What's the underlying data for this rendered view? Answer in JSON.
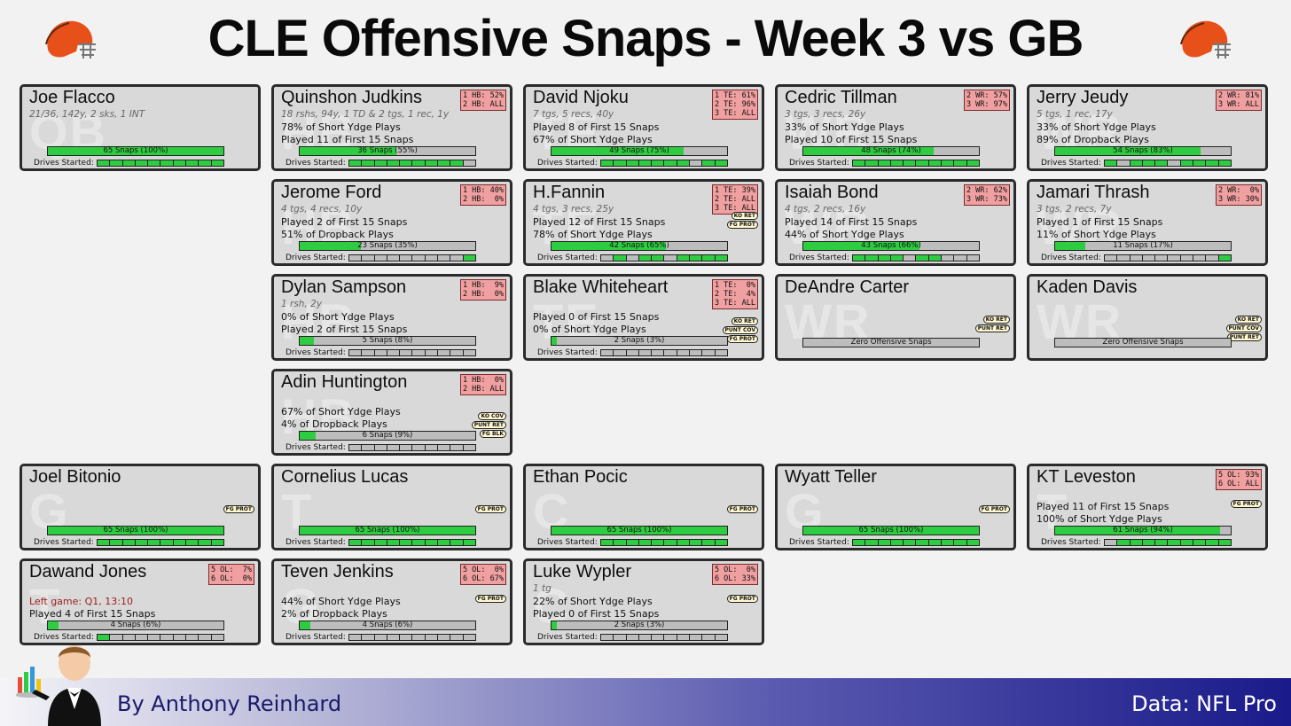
{
  "title": "CLE Offensive Snaps - Week 3 vs GB",
  "footer": {
    "byline": "By Anthony Reinhard",
    "source": "Data: NFL Pro"
  },
  "labels": {
    "drives": "Drives Started:"
  },
  "colors": {
    "fill": "#2ecc40",
    "bar_empty": "#bdbdbd",
    "badge": "#f0a0a0",
    "card": "#d9d9d9",
    "helmet": "#e8501a"
  },
  "players": [
    {
      "name": "Joe Flacco",
      "pos": "QB",
      "sub": "21/36, 142y, 2 sks, 1 INT",
      "l1": "",
      "l2": "",
      "snaps": "65 Snaps (100%)",
      "pct": 1.0,
      "drives": [
        1,
        1,
        1,
        1,
        1,
        1,
        1,
        1,
        1,
        1
      ],
      "badge": "",
      "roles": []
    },
    {
      "name": "Quinshon Judkins",
      "pos": "HB",
      "sub": "18 rshs, 94y, 1 TD & 2 tgs, 1 rec, 1y",
      "l1": "78% of Short Ydge Plays",
      "l2": "Played 11 of First 15 Snaps",
      "snaps": "36 Snaps (55%)",
      "pct": 0.55,
      "drives": [
        1,
        1,
        1,
        1,
        1,
        1,
        1,
        1,
        1,
        0
      ],
      "badge": "1 HB: 52%\n2 HB: ALL",
      "roles": []
    },
    {
      "name": "David Njoku",
      "pos": "TE",
      "sub": "7 tgs, 5 recs, 40y",
      "l1": "Played 8 of First 15 Snaps",
      "l2": "67% of Short Ydge Plays",
      "snaps": "49 Snaps (75%)",
      "pct": 0.75,
      "drives": [
        1,
        1,
        1,
        1,
        1,
        1,
        1,
        0,
        1,
        1
      ],
      "badge": "1 TE: 61%\n2 TE: 96%\n3 TE: ALL",
      "roles": []
    },
    {
      "name": "Cedric Tillman",
      "pos": "WR",
      "sub": "3 tgs, 3 recs, 26y",
      "l1": "33% of Short Ydge Plays",
      "l2": "Played 10 of First 15 Snaps",
      "snaps": "48 Snaps (74%)",
      "pct": 0.74,
      "drives": [
        1,
        1,
        1,
        1,
        1,
        1,
        1,
        1,
        1,
        1
      ],
      "badge": "2 WR: 57%\n3 WR: 97%",
      "roles": []
    },
    {
      "name": "Jerry Jeudy",
      "pos": "WR",
      "sub": "5 tgs, 1 rec, 17y",
      "l1": "33% of Short Ydge Plays",
      "l2": "89% of Dropback Plays",
      "snaps": "54 Snaps (83%)",
      "pct": 0.83,
      "drives": [
        1,
        0,
        1,
        1,
        1,
        0,
        1,
        1,
        1,
        1
      ],
      "badge": "2 WR: 81%\n3 WR: ALL",
      "roles": []
    },
    {
      "name": "Jerome Ford",
      "pos": "HB",
      "sub": "4 tgs, 4 recs, 10y",
      "l1": "Played 2 of First 15 Snaps",
      "l2": "51% of Dropback Plays",
      "snaps": "23 Snaps (35%)",
      "pct": 0.35,
      "drives": [
        0,
        0,
        0,
        0,
        0,
        0,
        0,
        0,
        0,
        1
      ],
      "badge": "1 HB: 40%\n2 HB:  0%",
      "roles": []
    },
    {
      "name": "H.Fannin",
      "pos": "TE",
      "sub": "4 tgs, 3 recs, 25y",
      "l1": "Played 12 of First 15 Snaps",
      "l2": "78% of Short Ydge Plays",
      "snaps": "42 Snaps (65%)",
      "pct": 0.65,
      "drives": [
        0,
        1,
        0,
        1,
        1,
        0,
        1,
        1,
        1,
        1
      ],
      "badge": "1 TE: 39%\n2 TE: ALL\n3 TE: ALL",
      "roles": [
        "KO RET",
        "FG PROT"
      ]
    },
    {
      "name": "Isaiah Bond",
      "pos": "WR",
      "sub": "4 tgs, 2 recs, 16y",
      "l1": "Played 14 of First 15 Snaps",
      "l2": "44% of Short Ydge Plays",
      "snaps": "43 Snaps (66%)",
      "pct": 0.66,
      "drives": [
        1,
        1,
        1,
        1,
        0,
        1,
        1,
        0,
        0,
        0
      ],
      "badge": "2 WR: 62%\n3 WR: 73%",
      "roles": []
    },
    {
      "name": "Jamari Thrash",
      "pos": "WR",
      "sub": "3 tgs, 2 recs, 7y",
      "l1": "Played 1 of First 15 Snaps",
      "l2": "11% of Short Ydge Plays",
      "snaps": "11 Snaps (17%)",
      "pct": 0.17,
      "drives": [
        0,
        0,
        0,
        0,
        0,
        0,
        0,
        0,
        0,
        1
      ],
      "badge": "2 WR:  0%\n3 WR: 30%",
      "roles": []
    },
    {
      "name": "Dylan Sampson",
      "pos": "HB",
      "sub": "1 rsh, 2y",
      "l1": "0% of Short Ydge Plays",
      "l2": "Played 2 of First 15 Snaps",
      "snaps": "5 Snaps (8%)",
      "pct": 0.08,
      "drives": [
        0,
        0,
        0,
        0,
        0,
        0,
        0,
        0,
        0,
        0
      ],
      "badge": "1 HB:  9%\n2 HB:  0%",
      "roles": []
    },
    {
      "name": "Blake Whiteheart",
      "pos": "TE",
      "sub": "",
      "l1": "Played 0 of First 15 Snaps",
      "l2": "0% of Short Ydge Plays",
      "snaps": "2 Snaps (3%)",
      "pct": 0.03,
      "drives": [
        0,
        0,
        0,
        0,
        0,
        0,
        0,
        0,
        0,
        0
      ],
      "badge": "1 TE:  0%\n2 TE:  4%\n3 TE: ALL",
      "roles": [
        "KO RET",
        "PUNT COV",
        "FG PROT"
      ]
    },
    {
      "name": "DeAndre Carter",
      "pos": "WR",
      "sub": "",
      "l1": "",
      "l2": "",
      "snaps": "Zero Offensive Snaps",
      "pct": 0,
      "drives": null,
      "badge": "",
      "roles": [
        "KO RET",
        "PUNT RET"
      ]
    },
    {
      "name": "Kaden Davis",
      "pos": "WR",
      "sub": "",
      "l1": "",
      "l2": "",
      "snaps": "Zero Offensive Snaps",
      "pct": 0,
      "drives": null,
      "badge": "",
      "roles": [
        "KO RET",
        "PUNT COV",
        "PUNT RET"
      ]
    },
    {
      "name": "Adin Huntington",
      "pos": "HB",
      "sub": "",
      "l1": "67% of Short Ydge Plays",
      "l2": "4% of Dropback Plays",
      "snaps": "6 Snaps (9%)",
      "pct": 0.09,
      "drives": [
        0,
        0,
        0,
        0,
        0,
        0,
        0,
        0,
        0,
        0
      ],
      "badge": "1 HB:  0%\n2 HB: ALL",
      "roles": [
        "KO COV",
        "PUNT RET",
        "FG BLK"
      ]
    },
    {
      "name": "Joel Bitonio",
      "pos": "G",
      "sub": "",
      "l1": "",
      "l2": "",
      "snaps": "65 Snaps (100%)",
      "pct": 1.0,
      "drives": [
        1,
        1,
        1,
        1,
        1,
        1,
        1,
        1,
        1,
        1
      ],
      "badge": "",
      "roles": [
        "FG PROT"
      ]
    },
    {
      "name": "Cornelius Lucas",
      "pos": "T",
      "sub": "",
      "l1": "",
      "l2": "",
      "snaps": "65 Snaps (100%)",
      "pct": 1.0,
      "drives": [
        1,
        1,
        1,
        1,
        1,
        1,
        1,
        1,
        1,
        1
      ],
      "badge": "",
      "roles": [
        "FG PROT"
      ]
    },
    {
      "name": "Ethan Pocic",
      "pos": "C",
      "sub": "",
      "l1": "",
      "l2": "",
      "snaps": "65 Snaps (100%)",
      "pct": 1.0,
      "drives": [
        1,
        1,
        1,
        1,
        1,
        1,
        1,
        1,
        1,
        1
      ],
      "badge": "",
      "roles": [
        "FG PROT"
      ]
    },
    {
      "name": "Wyatt Teller",
      "pos": "G",
      "sub": "",
      "l1": "",
      "l2": "",
      "snaps": "65 Snaps (100%)",
      "pct": 1.0,
      "drives": [
        1,
        1,
        1,
        1,
        1,
        1,
        1,
        1,
        1,
        1
      ],
      "badge": "",
      "roles": [
        "FG PROT"
      ]
    },
    {
      "name": "KT Leveston",
      "pos": "T",
      "sub": "",
      "l1": "Played 11 of First 15 Snaps",
      "l2": "100% of Short Ydge Plays",
      "snaps": "61 Snaps (94%)",
      "pct": 0.94,
      "drives": [
        0,
        1,
        1,
        1,
        1,
        1,
        1,
        1,
        1,
        1
      ],
      "badge": "5 OL: 93%\n6 OL: ALL",
      "roles": [
        "FG PROT"
      ]
    },
    {
      "name": "Dawand Jones",
      "pos": "T",
      "sub": "",
      "l1": "Left game: Q1, 13:10",
      "l1red": true,
      "l2": "Played 4 of First 15 Snaps",
      "snaps": "4 Snaps (6%)",
      "pct": 0.06,
      "drives": [
        1,
        0,
        0,
        0,
        0,
        0,
        0,
        0,
        0,
        0
      ],
      "badge": "5 OL:  7%\n6 OL:  0%",
      "roles": []
    },
    {
      "name": "Teven Jenkins",
      "pos": "G",
      "sub": "",
      "l1": "44% of Short Ydge Plays",
      "l2": "2% of Dropback Plays",
      "snaps": "4 Snaps (6%)",
      "pct": 0.06,
      "drives": [
        0,
        0,
        0,
        0,
        0,
        0,
        0,
        0,
        0,
        0
      ],
      "badge": "5 OL:  0%\n6 OL: 67%",
      "roles": [
        "FG PROT"
      ]
    },
    {
      "name": "Luke Wypler",
      "pos": "C",
      "sub": "1 tg",
      "l1": "22% of Short Ydge Plays",
      "l2": "Played 0 of First 15 Snaps",
      "snaps": "2 Snaps (3%)",
      "pct": 0.03,
      "drives": [
        0,
        0,
        0,
        0,
        0,
        0,
        0,
        0,
        0,
        0
      ],
      "badge": "5 OL:  0%\n6 OL: 33%",
      "roles": [
        "FG PROT"
      ]
    }
  ]
}
